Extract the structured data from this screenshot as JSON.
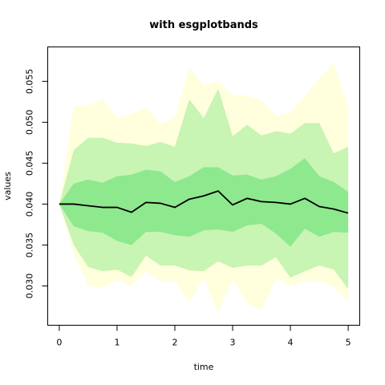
{
  "chart_data": {
    "type": "area",
    "title": "with esgplotbands",
    "xlabel": "time",
    "ylabel": "values",
    "xlim": [
      -0.2,
      5.2
    ],
    "ylim": [
      0.0252,
      0.0592
    ],
    "xticks": [
      0,
      1,
      2,
      3,
      4,
      5
    ],
    "xtick_labels": [
      "0",
      "1",
      "2",
      "3",
      "4",
      "5"
    ],
    "yticks": [
      0.03,
      0.035,
      0.04,
      0.045,
      0.05,
      0.055
    ],
    "ytick_labels": [
      "0.030",
      "0.035",
      "0.040",
      "0.045",
      "0.050",
      "0.055"
    ],
    "grid": false,
    "x": [
      0,
      0.25,
      0.5,
      0.75,
      1.0,
      1.25,
      1.5,
      1.75,
      2.0,
      2.25,
      2.5,
      2.75,
      3.0,
      3.25,
      3.5,
      3.75,
      4.0,
      4.25,
      4.5,
      4.75,
      5.0
    ],
    "bands": [
      {
        "color": "#ffffdd",
        "upper": [
          0.04,
          0.052,
          0.052,
          0.0528,
          0.0505,
          0.051,
          0.0518,
          0.0498,
          0.0505,
          0.0566,
          0.0545,
          0.0551,
          0.0533,
          0.0533,
          0.0527,
          0.0508,
          0.0512,
          0.0532,
          0.0553,
          0.0572,
          0.0519
        ],
        "lower": [
          0.04,
          0.0339,
          0.03,
          0.0298,
          0.0307,
          0.03,
          0.0318,
          0.0306,
          0.0306,
          0.028,
          0.031,
          0.0267,
          0.0308,
          0.0279,
          0.027,
          0.031,
          0.03,
          0.0306,
          0.0306,
          0.0299,
          0.028
        ]
      },
      {
        "color": "#c8f4b4",
        "upper": [
          0.04,
          0.0466,
          0.0481,
          0.0481,
          0.0475,
          0.0474,
          0.0471,
          0.0476,
          0.047,
          0.0528,
          0.0505,
          0.0541,
          0.0483,
          0.0497,
          0.0484,
          0.0489,
          0.0486,
          0.0499,
          0.0499,
          0.0462,
          0.047
        ],
        "lower": [
          0.04,
          0.035,
          0.0323,
          0.0318,
          0.032,
          0.0311,
          0.0337,
          0.0325,
          0.0325,
          0.0319,
          0.0318,
          0.033,
          0.0322,
          0.0325,
          0.0325,
          0.0335,
          0.031,
          0.0318,
          0.0325,
          0.032,
          0.0296
        ]
      },
      {
        "color": "#8ee88e",
        "upper": [
          0.04,
          0.0425,
          0.043,
          0.0426,
          0.0434,
          0.0436,
          0.0442,
          0.044,
          0.0427,
          0.0434,
          0.0445,
          0.0445,
          0.0435,
          0.0436,
          0.043,
          0.0434,
          0.0443,
          0.0456,
          0.0434,
          0.0427,
          0.0415
        ],
        "lower": [
          0.04,
          0.0373,
          0.0367,
          0.0365,
          0.0355,
          0.035,
          0.0366,
          0.0366,
          0.0362,
          0.036,
          0.0368,
          0.0369,
          0.0366,
          0.0374,
          0.0376,
          0.0364,
          0.0348,
          0.037,
          0.036,
          0.0366,
          0.0365
        ]
      }
    ],
    "series": [
      {
        "color": "#000000",
        "values": [
          0.04,
          0.04,
          0.0398,
          0.0396,
          0.0396,
          0.039,
          0.0402,
          0.0401,
          0.0396,
          0.0406,
          0.041,
          0.0416,
          0.0399,
          0.0407,
          0.0403,
          0.0402,
          0.04,
          0.0407,
          0.0397,
          0.0394,
          0.0389
        ]
      }
    ]
  }
}
